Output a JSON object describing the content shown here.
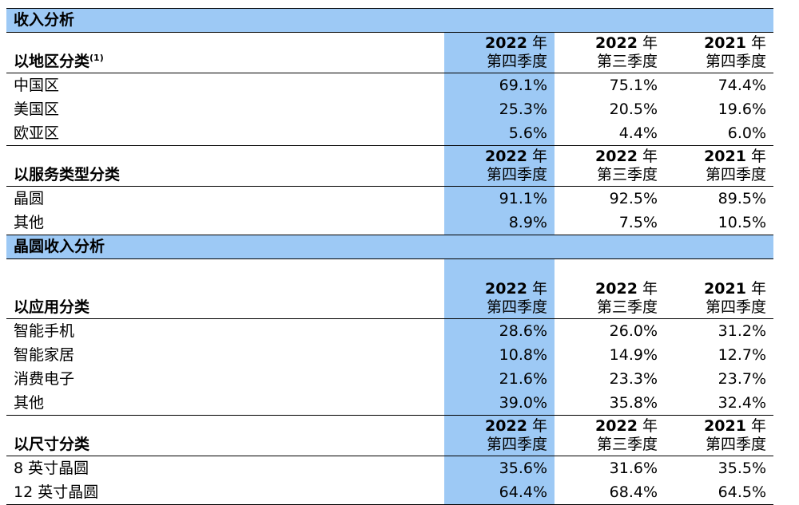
{
  "header_cols": {
    "q4_2022": {
      "year": "2022",
      "unit": "年",
      "quarter": "第四季度"
    },
    "q3_2022": {
      "year": "2022",
      "unit": "年",
      "quarter": "第三季度"
    },
    "q4_2021": {
      "year": "2021",
      "unit": "年",
      "quarter": "第四季度"
    }
  },
  "section1": {
    "title": "收入分析",
    "group_region": {
      "label": "以地区分类",
      "footnote": "(1)",
      "rows": [
        {
          "name": "中国区",
          "q4_2022": "69.1%",
          "q3_2022": "75.1%",
          "q4_2021": "74.4%"
        },
        {
          "name": "美国区",
          "q4_2022": "25.3%",
          "q3_2022": "20.5%",
          "q4_2021": "19.6%"
        },
        {
          "name": "欧亚区",
          "q4_2022": "5.6%",
          "q3_2022": "4.4%",
          "q4_2021": "6.0%"
        }
      ]
    },
    "group_service": {
      "label": "以服务类型分类",
      "rows": [
        {
          "name": "晶圆",
          "q4_2022": "91.1%",
          "q3_2022": "92.5%",
          "q4_2021": "89.5%"
        },
        {
          "name": "其他",
          "q4_2022": "8.9%",
          "q3_2022": "7.5%",
          "q4_2021": "10.5%"
        }
      ]
    }
  },
  "section2": {
    "title": "晶圆收入分析",
    "group_application": {
      "label": "以应用分类",
      "rows": [
        {
          "name": "智能手机",
          "q4_2022": "28.6%",
          "q3_2022": "26.0%",
          "q4_2021": "31.2%"
        },
        {
          "name": "智能家居",
          "q4_2022": "10.8%",
          "q3_2022": "14.9%",
          "q4_2021": "12.7%"
        },
        {
          "name": "消费电子",
          "q4_2022": "21.6%",
          "q3_2022": "23.3%",
          "q4_2021": "23.7%"
        },
        {
          "name": "其他",
          "q4_2022": "39.0%",
          "q3_2022": "35.8%",
          "q4_2021": "32.4%"
        }
      ]
    },
    "group_size": {
      "label": "以尺寸分类",
      "rows": [
        {
          "name": "8 英寸晶圆",
          "q4_2022": "35.6%",
          "q3_2022": "31.6%",
          "q4_2021": "35.5%"
        },
        {
          "name": "12 英寸晶圆",
          "q4_2022": "64.4%",
          "q3_2022": "68.4%",
          "q4_2021": "64.5%"
        }
      ]
    }
  },
  "colors": {
    "highlight": "#9dc9f5",
    "border": "#000000"
  }
}
